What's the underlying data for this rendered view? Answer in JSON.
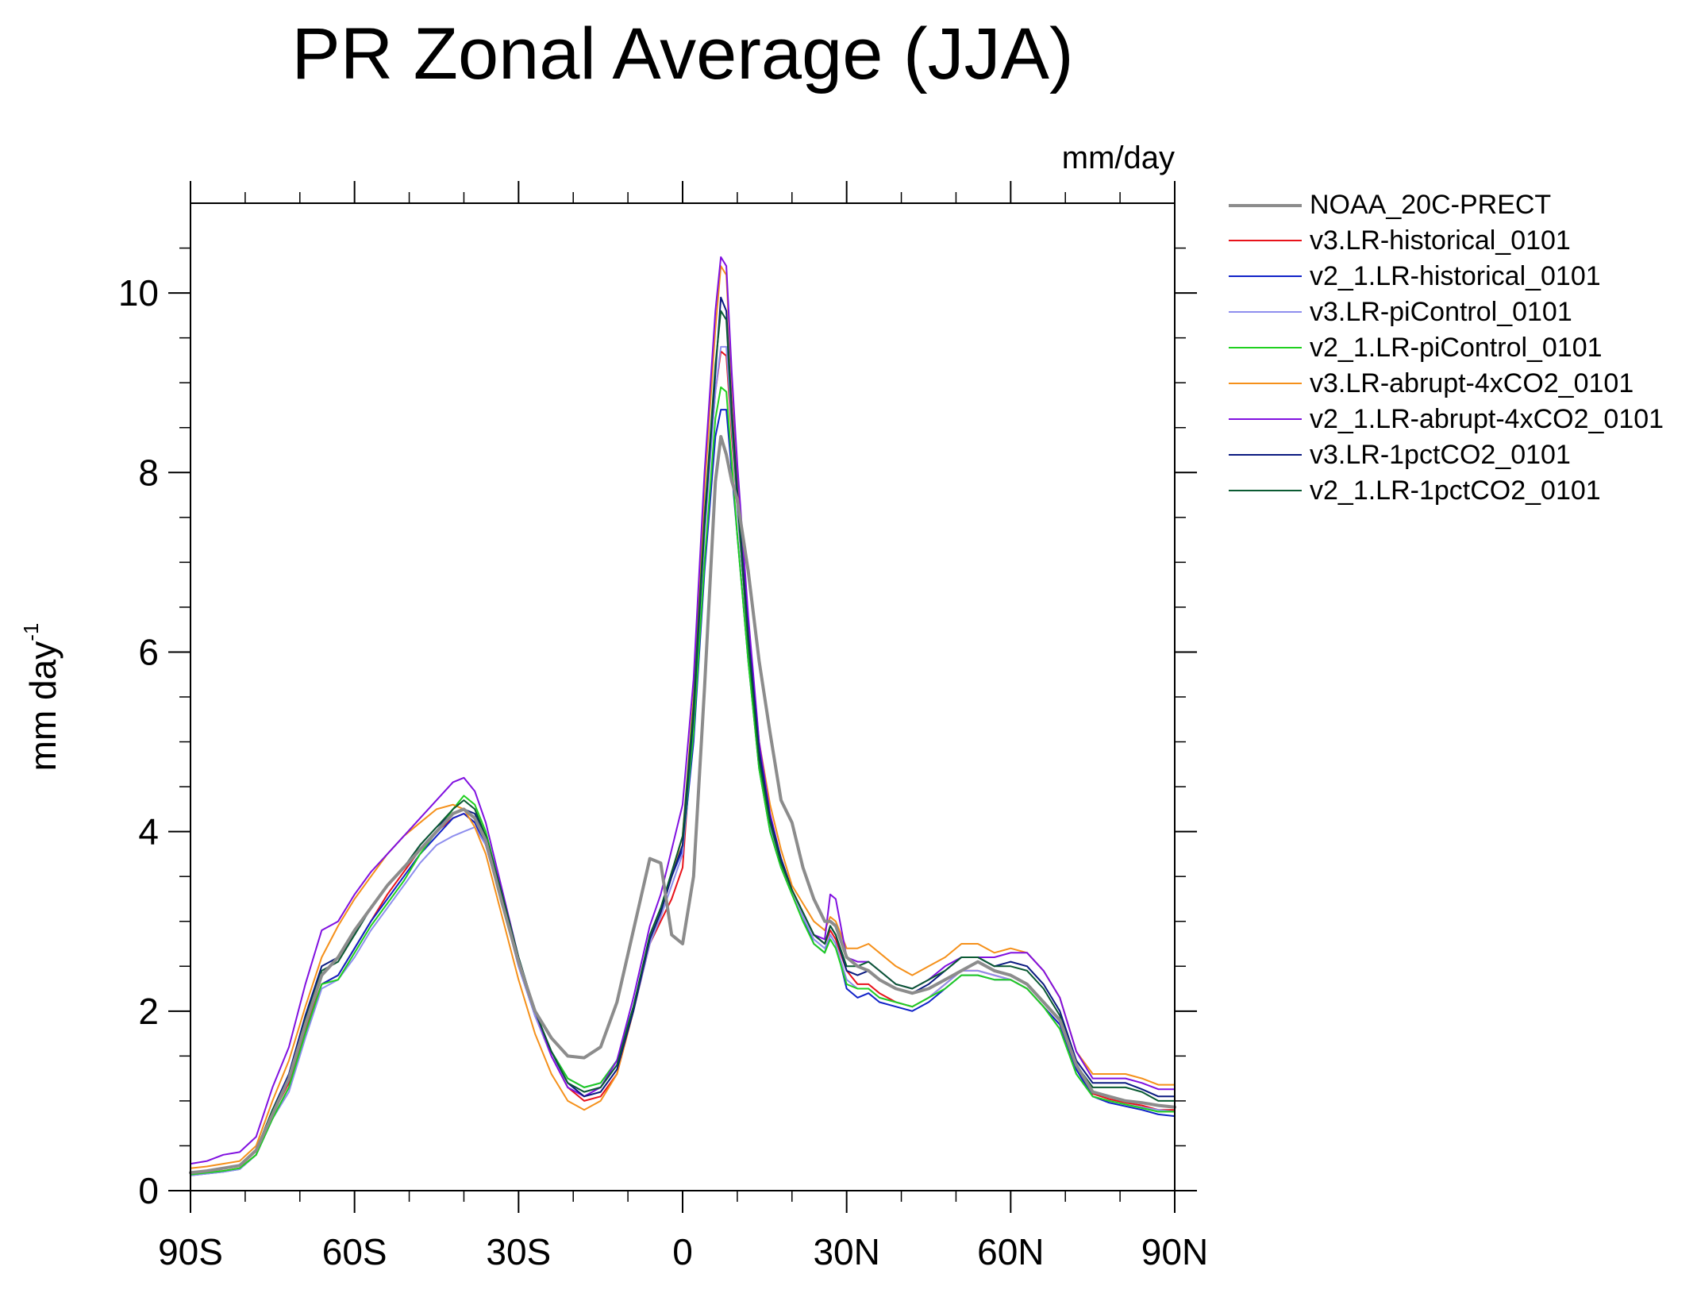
{
  "chart_data": {
    "type": "line",
    "title": "PR Zonal Average (JJA)",
    "units_label": "mm/day",
    "ylabel": "mm day",
    "ylabel_sup": "-1",
    "xlim": [
      -90,
      90
    ],
    "ylim": [
      0,
      11
    ],
    "xticks": [
      {
        "value": -90,
        "label": "90S"
      },
      {
        "value": -60,
        "label": "60S"
      },
      {
        "value": -30,
        "label": "30S"
      },
      {
        "value": 0,
        "label": "0"
      },
      {
        "value": 30,
        "label": "30N"
      },
      {
        "value": 60,
        "label": "60N"
      },
      {
        "value": 90,
        "label": "90N"
      }
    ],
    "yticks": [
      {
        "value": 0,
        "label": "0"
      },
      {
        "value": 2,
        "label": "2"
      },
      {
        "value": 4,
        "label": "4"
      },
      {
        "value": 6,
        "label": "6"
      },
      {
        "value": 8,
        "label": "8"
      },
      {
        "value": 10,
        "label": "10"
      }
    ],
    "x": [
      -90,
      -87,
      -84,
      -81,
      -78,
      -75,
      -72,
      -69,
      -66,
      -63,
      -60,
      -57,
      -54,
      -51,
      -48,
      -45,
      -42,
      -40,
      -38,
      -36,
      -33,
      -30,
      -27,
      -24,
      -21,
      -18,
      -15,
      -12,
      -9,
      -6,
      -4,
      -2,
      0,
      2,
      4,
      6,
      7,
      8,
      9,
      10,
      12,
      14,
      16,
      18,
      20,
      22,
      24,
      26,
      27,
      28,
      30,
      32,
      34,
      36,
      39,
      42,
      45,
      48,
      51,
      54,
      57,
      60,
      63,
      66,
      69,
      72,
      75,
      78,
      81,
      84,
      87,
      90
    ],
    "series": [
      {
        "name": "NOAA_20C-PRECT",
        "color": "#8c8c8c",
        "width": 4,
        "values": [
          0.2,
          0.22,
          0.25,
          0.28,
          0.45,
          0.85,
          1.25,
          1.85,
          2.4,
          2.6,
          2.9,
          3.15,
          3.4,
          3.6,
          3.8,
          4.0,
          4.2,
          4.25,
          4.15,
          3.9,
          3.2,
          2.55,
          2.0,
          1.7,
          1.5,
          1.48,
          1.6,
          2.1,
          2.9,
          3.7,
          3.65,
          2.85,
          2.75,
          3.5,
          5.6,
          7.9,
          8.4,
          8.2,
          7.9,
          7.7,
          6.9,
          5.9,
          5.1,
          4.35,
          4.1,
          3.6,
          3.25,
          3.0,
          3.0,
          2.95,
          2.6,
          2.5,
          2.45,
          2.35,
          2.25,
          2.2,
          2.25,
          2.35,
          2.45,
          2.55,
          2.45,
          2.4,
          2.3,
          2.1,
          1.9,
          1.4,
          1.1,
          1.05,
          1.0,
          0.98,
          0.95,
          0.93
        ]
      },
      {
        "name": "v3.LR-historical_0101",
        "color": "#e8121a",
        "width": 2,
        "values": [
          0.18,
          0.2,
          0.22,
          0.25,
          0.4,
          0.85,
          1.2,
          1.8,
          2.3,
          2.4,
          2.7,
          3.0,
          3.3,
          3.55,
          3.8,
          4.0,
          4.15,
          4.2,
          4.1,
          3.85,
          3.2,
          2.55,
          1.95,
          1.5,
          1.15,
          1.0,
          1.05,
          1.3,
          2.0,
          2.75,
          3.0,
          3.25,
          3.6,
          5.3,
          7.4,
          8.9,
          9.35,
          9.3,
          8.4,
          7.6,
          6.1,
          4.8,
          4.1,
          3.7,
          3.35,
          3.1,
          2.85,
          2.75,
          2.9,
          2.8,
          2.45,
          2.3,
          2.3,
          2.2,
          2.1,
          2.05,
          2.15,
          2.3,
          2.45,
          2.45,
          2.4,
          2.35,
          2.25,
          2.05,
          1.85,
          1.35,
          1.08,
          1.02,
          0.98,
          0.95,
          0.9,
          0.9
        ]
      },
      {
        "name": "v2_1.LR-historical_0101",
        "color": "#1022c8",
        "width": 2,
        "values": [
          0.17,
          0.19,
          0.21,
          0.24,
          0.4,
          0.8,
          1.15,
          1.75,
          2.3,
          2.4,
          2.7,
          3.0,
          3.25,
          3.5,
          3.75,
          3.95,
          4.15,
          4.2,
          4.1,
          3.85,
          3.2,
          2.5,
          1.95,
          1.55,
          1.25,
          1.15,
          1.2,
          1.45,
          2.05,
          2.8,
          3.1,
          3.5,
          3.8,
          5.0,
          6.9,
          8.4,
          8.7,
          8.7,
          8.0,
          7.3,
          5.9,
          4.7,
          4.0,
          3.6,
          3.3,
          3.05,
          2.75,
          2.65,
          2.85,
          2.75,
          2.25,
          2.15,
          2.2,
          2.1,
          2.05,
          2.0,
          2.1,
          2.25,
          2.4,
          2.4,
          2.35,
          2.35,
          2.25,
          2.05,
          1.85,
          1.35,
          1.05,
          0.98,
          0.94,
          0.9,
          0.85,
          0.83
        ]
      },
      {
        "name": "v3.LR-piControl_0101",
        "color": "#8e8eee",
        "width": 2,
        "values": [
          0.17,
          0.19,
          0.21,
          0.24,
          0.4,
          0.8,
          1.1,
          1.7,
          2.25,
          2.35,
          2.6,
          2.9,
          3.15,
          3.4,
          3.65,
          3.85,
          3.95,
          4.0,
          4.05,
          3.85,
          3.2,
          2.5,
          1.95,
          1.5,
          1.2,
          1.1,
          1.15,
          1.4,
          2.0,
          2.75,
          3.05,
          3.4,
          3.75,
          5.3,
          7.3,
          8.9,
          9.4,
          9.4,
          8.5,
          7.6,
          6.1,
          4.8,
          4.05,
          3.65,
          3.3,
          3.05,
          2.8,
          2.7,
          2.85,
          2.75,
          2.35,
          2.25,
          2.25,
          2.15,
          2.1,
          2.05,
          2.15,
          2.3,
          2.45,
          2.45,
          2.4,
          2.35,
          2.25,
          2.05,
          1.8,
          1.3,
          1.05,
          1.0,
          0.96,
          0.93,
          0.9,
          0.88
        ]
      },
      {
        "name": "v2_1.LR-piControl_0101",
        "color": "#20d020",
        "width": 2,
        "values": [
          0.18,
          0.2,
          0.22,
          0.25,
          0.4,
          0.8,
          1.15,
          1.75,
          2.3,
          2.35,
          2.65,
          2.95,
          3.2,
          3.45,
          3.75,
          4.0,
          4.25,
          4.4,
          4.3,
          4.0,
          3.3,
          2.6,
          2.0,
          1.55,
          1.25,
          1.15,
          1.2,
          1.45,
          2.05,
          2.8,
          3.1,
          3.5,
          3.85,
          5.1,
          7.0,
          8.6,
          8.95,
          8.9,
          8.1,
          7.3,
          5.9,
          4.7,
          4.0,
          3.6,
          3.3,
          3.0,
          2.75,
          2.65,
          2.8,
          2.7,
          2.3,
          2.25,
          2.25,
          2.15,
          2.1,
          2.05,
          2.15,
          2.25,
          2.4,
          2.4,
          2.35,
          2.35,
          2.25,
          2.05,
          1.8,
          1.3,
          1.05,
          1.0,
          0.96,
          0.92,
          0.88,
          0.88
        ]
      },
      {
        "name": "v3.LR-abrupt-4xCO2_0101",
        "color": "#f5901a",
        "width": 2,
        "values": [
          0.25,
          0.27,
          0.3,
          0.33,
          0.5,
          1.0,
          1.45,
          2.05,
          2.6,
          2.95,
          3.25,
          3.5,
          3.75,
          3.95,
          4.1,
          4.25,
          4.3,
          4.25,
          4.05,
          3.75,
          3.05,
          2.35,
          1.75,
          1.3,
          1.0,
          0.9,
          1.0,
          1.3,
          2.0,
          2.8,
          3.1,
          3.5,
          3.95,
          5.5,
          7.8,
          9.6,
          10.3,
          10.2,
          9.0,
          8.0,
          6.3,
          5.0,
          4.3,
          3.8,
          3.4,
          3.2,
          3.0,
          2.9,
          3.05,
          3.0,
          2.7,
          2.7,
          2.75,
          2.65,
          2.5,
          2.4,
          2.5,
          2.6,
          2.75,
          2.75,
          2.65,
          2.7,
          2.65,
          2.45,
          2.15,
          1.55,
          1.3,
          1.3,
          1.3,
          1.25,
          1.18,
          1.18
        ]
      },
      {
        "name": "v2_1.LR-abrupt-4xCO2_0101",
        "color": "#8010e0",
        "width": 2,
        "values": [
          0.3,
          0.33,
          0.4,
          0.43,
          0.6,
          1.15,
          1.6,
          2.3,
          2.9,
          3.0,
          3.3,
          3.55,
          3.75,
          3.95,
          4.15,
          4.35,
          4.55,
          4.6,
          4.45,
          4.1,
          3.35,
          2.6,
          2.0,
          1.5,
          1.15,
          1.05,
          1.15,
          1.45,
          2.15,
          2.95,
          3.3,
          3.8,
          4.3,
          5.7,
          8.0,
          9.8,
          10.4,
          10.3,
          9.1,
          8.1,
          6.4,
          5.0,
          4.2,
          3.7,
          3.35,
          3.1,
          2.85,
          2.8,
          3.3,
          3.25,
          2.6,
          2.55,
          2.55,
          2.45,
          2.3,
          2.25,
          2.35,
          2.5,
          2.6,
          2.6,
          2.6,
          2.65,
          2.65,
          2.45,
          2.15,
          1.55,
          1.25,
          1.25,
          1.25,
          1.2,
          1.13,
          1.13
        ]
      },
      {
        "name": "v3.LR-1pctCO2_0101",
        "color": "#0a1a80",
        "width": 2,
        "values": [
          0.2,
          0.22,
          0.25,
          0.28,
          0.45,
          0.9,
          1.3,
          1.95,
          2.5,
          2.6,
          2.85,
          3.15,
          3.4,
          3.6,
          3.85,
          4.05,
          4.2,
          4.25,
          4.2,
          3.95,
          3.3,
          2.6,
          2.0,
          1.55,
          1.2,
          1.05,
          1.1,
          1.35,
          2.0,
          2.8,
          3.1,
          3.5,
          3.85,
          5.3,
          7.4,
          9.1,
          9.95,
          9.8,
          8.7,
          7.8,
          6.2,
          4.9,
          4.15,
          3.7,
          3.35,
          3.1,
          2.85,
          2.75,
          2.95,
          2.85,
          2.45,
          2.4,
          2.45,
          2.35,
          2.25,
          2.2,
          2.3,
          2.45,
          2.6,
          2.6,
          2.5,
          2.55,
          2.5,
          2.3,
          2.0,
          1.45,
          1.2,
          1.2,
          1.2,
          1.13,
          1.05,
          1.05
        ]
      },
      {
        "name": "v2_1.LR-1pctCO2_0101",
        "color": "#0a5a32",
        "width": 2,
        "values": [
          0.2,
          0.22,
          0.25,
          0.28,
          0.45,
          0.9,
          1.25,
          1.9,
          2.45,
          2.55,
          2.85,
          3.15,
          3.4,
          3.6,
          3.85,
          4.05,
          4.25,
          4.35,
          4.25,
          3.95,
          3.3,
          2.6,
          2.0,
          1.55,
          1.2,
          1.1,
          1.15,
          1.4,
          2.05,
          2.85,
          3.15,
          3.55,
          3.95,
          5.4,
          7.5,
          9.2,
          9.8,
          9.7,
          8.6,
          7.7,
          6.1,
          4.8,
          4.1,
          3.65,
          3.35,
          3.1,
          2.85,
          2.75,
          2.95,
          2.85,
          2.5,
          2.5,
          2.55,
          2.45,
          2.3,
          2.25,
          2.35,
          2.45,
          2.6,
          2.6,
          2.5,
          2.5,
          2.45,
          2.25,
          1.95,
          1.4,
          1.15,
          1.15,
          1.15,
          1.1,
          1.0,
          1.0
        ]
      }
    ]
  }
}
